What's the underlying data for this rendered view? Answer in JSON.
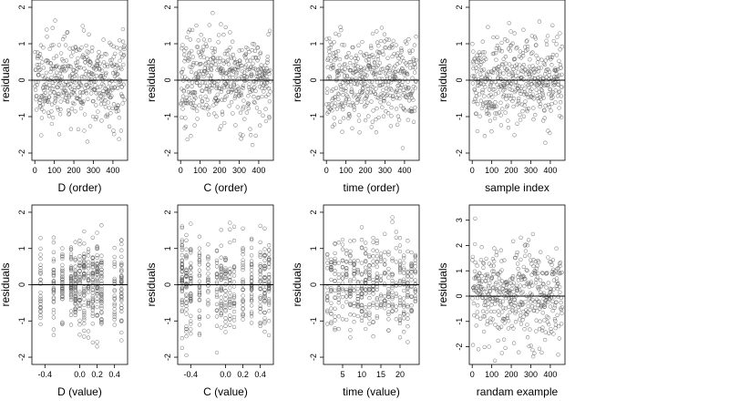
{
  "chart_data": [
    {
      "type": "scatter",
      "xlabel": "D (order)",
      "ylabel": "residuals",
      "xlim": [
        -15,
        475
      ],
      "ylim": [
        -2.2,
        2.2
      ],
      "xticks": [
        0,
        100,
        200,
        300,
        400
      ],
      "xtick_labels": [
        "0",
        "100",
        "200",
        "300",
        "400"
      ],
      "yticks": [
        -2,
        -1,
        0,
        1,
        2
      ],
      "ytick_labels": [
        "-2",
        "-1",
        "0",
        "1",
        "2"
      ],
      "hline": 0,
      "points": {
        "n": 460,
        "x_range": [
          1,
          460
        ],
        "spread": 0.6,
        "seed": 11,
        "kind": "index"
      }
    },
    {
      "type": "scatter",
      "xlabel": "C (order)",
      "ylabel": "residuals",
      "xlim": [
        -15,
        475
      ],
      "ylim": [
        -2.2,
        2.2
      ],
      "xticks": [
        0,
        100,
        200,
        300,
        400
      ],
      "xtick_labels": [
        "0",
        "100",
        "200",
        "300",
        "400"
      ],
      "yticks": [
        -2,
        -1,
        0,
        1,
        2
      ],
      "ytick_labels": [
        "-2",
        "-1",
        "0",
        "1",
        "2"
      ],
      "hline": 0,
      "points": {
        "n": 460,
        "x_range": [
          1,
          460
        ],
        "spread": 0.6,
        "seed": 23,
        "kind": "index"
      }
    },
    {
      "type": "scatter",
      "xlabel": "time (order)",
      "ylabel": "residuals",
      "xlim": [
        -15,
        475
      ],
      "ylim": [
        -2.2,
        2.2
      ],
      "xticks": [
        0,
        100,
        200,
        300,
        400
      ],
      "xtick_labels": [
        "0",
        "100",
        "200",
        "300",
        "400"
      ],
      "yticks": [
        -2,
        -1,
        0,
        1,
        2
      ],
      "ytick_labels": [
        "-2",
        "-1",
        "0",
        "1",
        "2"
      ],
      "hline": 0,
      "points": {
        "n": 460,
        "x_range": [
          1,
          460
        ],
        "spread": 0.6,
        "seed": 37,
        "kind": "index"
      }
    },
    {
      "type": "scatter",
      "xlabel": "sample index",
      "ylabel": "residuals",
      "xlim": [
        -15,
        475
      ],
      "ylim": [
        -2.2,
        2.2
      ],
      "xticks": [
        0,
        100,
        200,
        300,
        400
      ],
      "xtick_labels": [
        "0",
        "100",
        "200",
        "300",
        "400"
      ],
      "yticks": [
        -2,
        -1,
        0,
        1,
        2
      ],
      "ytick_labels": [
        "-2",
        "-1",
        "0",
        "1",
        "2"
      ],
      "hline": 0,
      "points": {
        "n": 460,
        "x_range": [
          1,
          460
        ],
        "spread": 0.6,
        "seed": 41,
        "kind": "index"
      }
    },
    {
      "type": "scatter",
      "xlabel": "D (value)",
      "ylabel": "residuals",
      "xlim": [
        -0.55,
        0.55
      ],
      "ylim": [
        -2.2,
        2.2
      ],
      "xticks": [
        -0.4,
        0,
        0.2,
        0.4
      ],
      "xtick_labels": [
        "-0.4",
        "0.0",
        "0.2",
        "0.4"
      ],
      "yticks": [
        -2,
        -1,
        0,
        1,
        2
      ],
      "ytick_labels": [
        "-2",
        "-1",
        "0",
        "1",
        "2"
      ],
      "hline": 0,
      "points": {
        "n": 460,
        "spread": 0.6,
        "seed": 53,
        "kind": "discrete",
        "levels": [
          -0.45,
          -0.3,
          -0.2,
          -0.1,
          -0.05,
          0,
          0.05,
          0.1,
          0.15,
          0.2,
          0.25,
          0.4,
          0.48
        ]
      }
    },
    {
      "type": "scatter",
      "xlabel": "C (value)",
      "ylabel": "residuals",
      "xlim": [
        -0.55,
        0.55
      ],
      "ylim": [
        -2.2,
        2.2
      ],
      "xticks": [
        -0.4,
        0,
        0.2,
        0.4
      ],
      "xtick_labels": [
        "-0.4",
        "0.0",
        "0.2",
        "0.4"
      ],
      "yticks": [
        -2,
        -1,
        0,
        1,
        2
      ],
      "ytick_labels": [
        "-2",
        "-1",
        "0",
        "1",
        "2"
      ],
      "hline": 0,
      "points": {
        "n": 460,
        "spread": 0.6,
        "seed": 67,
        "kind": "discrete",
        "levels": [
          -0.5,
          -0.45,
          -0.4,
          -0.3,
          -0.2,
          -0.1,
          -0.05,
          0,
          0.05,
          0.1,
          0.2,
          0.3,
          0.4,
          0.45,
          0.5
        ]
      }
    },
    {
      "type": "scatter",
      "xlabel": "time (value)",
      "ylabel": "residuals",
      "xlim": [
        0,
        25
      ],
      "ylim": [
        -2.2,
        2.2
      ],
      "xticks": [
        5,
        10,
        15,
        20
      ],
      "xtick_labels": [
        "5",
        "10",
        "15",
        "20"
      ],
      "yticks": [
        -2,
        -1,
        0,
        1,
        2
      ],
      "ytick_labels": [
        "-2",
        "-1",
        "0",
        "1",
        "2"
      ],
      "hline": 0,
      "points": {
        "n": 460,
        "spread": 0.6,
        "seed": 79,
        "kind": "discrete",
        "levels": [
          1,
          2,
          3,
          4,
          5,
          6,
          7,
          8,
          9,
          10,
          11,
          12,
          13,
          14,
          15,
          16,
          17,
          18,
          19,
          20,
          21,
          22,
          23,
          24
        ]
      }
    },
    {
      "type": "scatter",
      "xlabel": "randam example",
      "ylabel": "residuals",
      "xlim": [
        -15,
        475
      ],
      "ylim": [
        -2.7,
        3.6
      ],
      "xticks": [
        0,
        100,
        200,
        300,
        400
      ],
      "xtick_labels": [
        "0",
        "100",
        "200",
        "300",
        "400"
      ],
      "yticks": [
        -2,
        -1,
        0,
        1,
        2,
        3
      ],
      "ytick_labels": [
        "-2",
        "-1",
        "0",
        "1",
        "2",
        "3"
      ],
      "hline": 0,
      "points": {
        "n": 460,
        "x_range": [
          1,
          460
        ],
        "spread": 1.0,
        "seed": 97,
        "kind": "index"
      }
    }
  ]
}
